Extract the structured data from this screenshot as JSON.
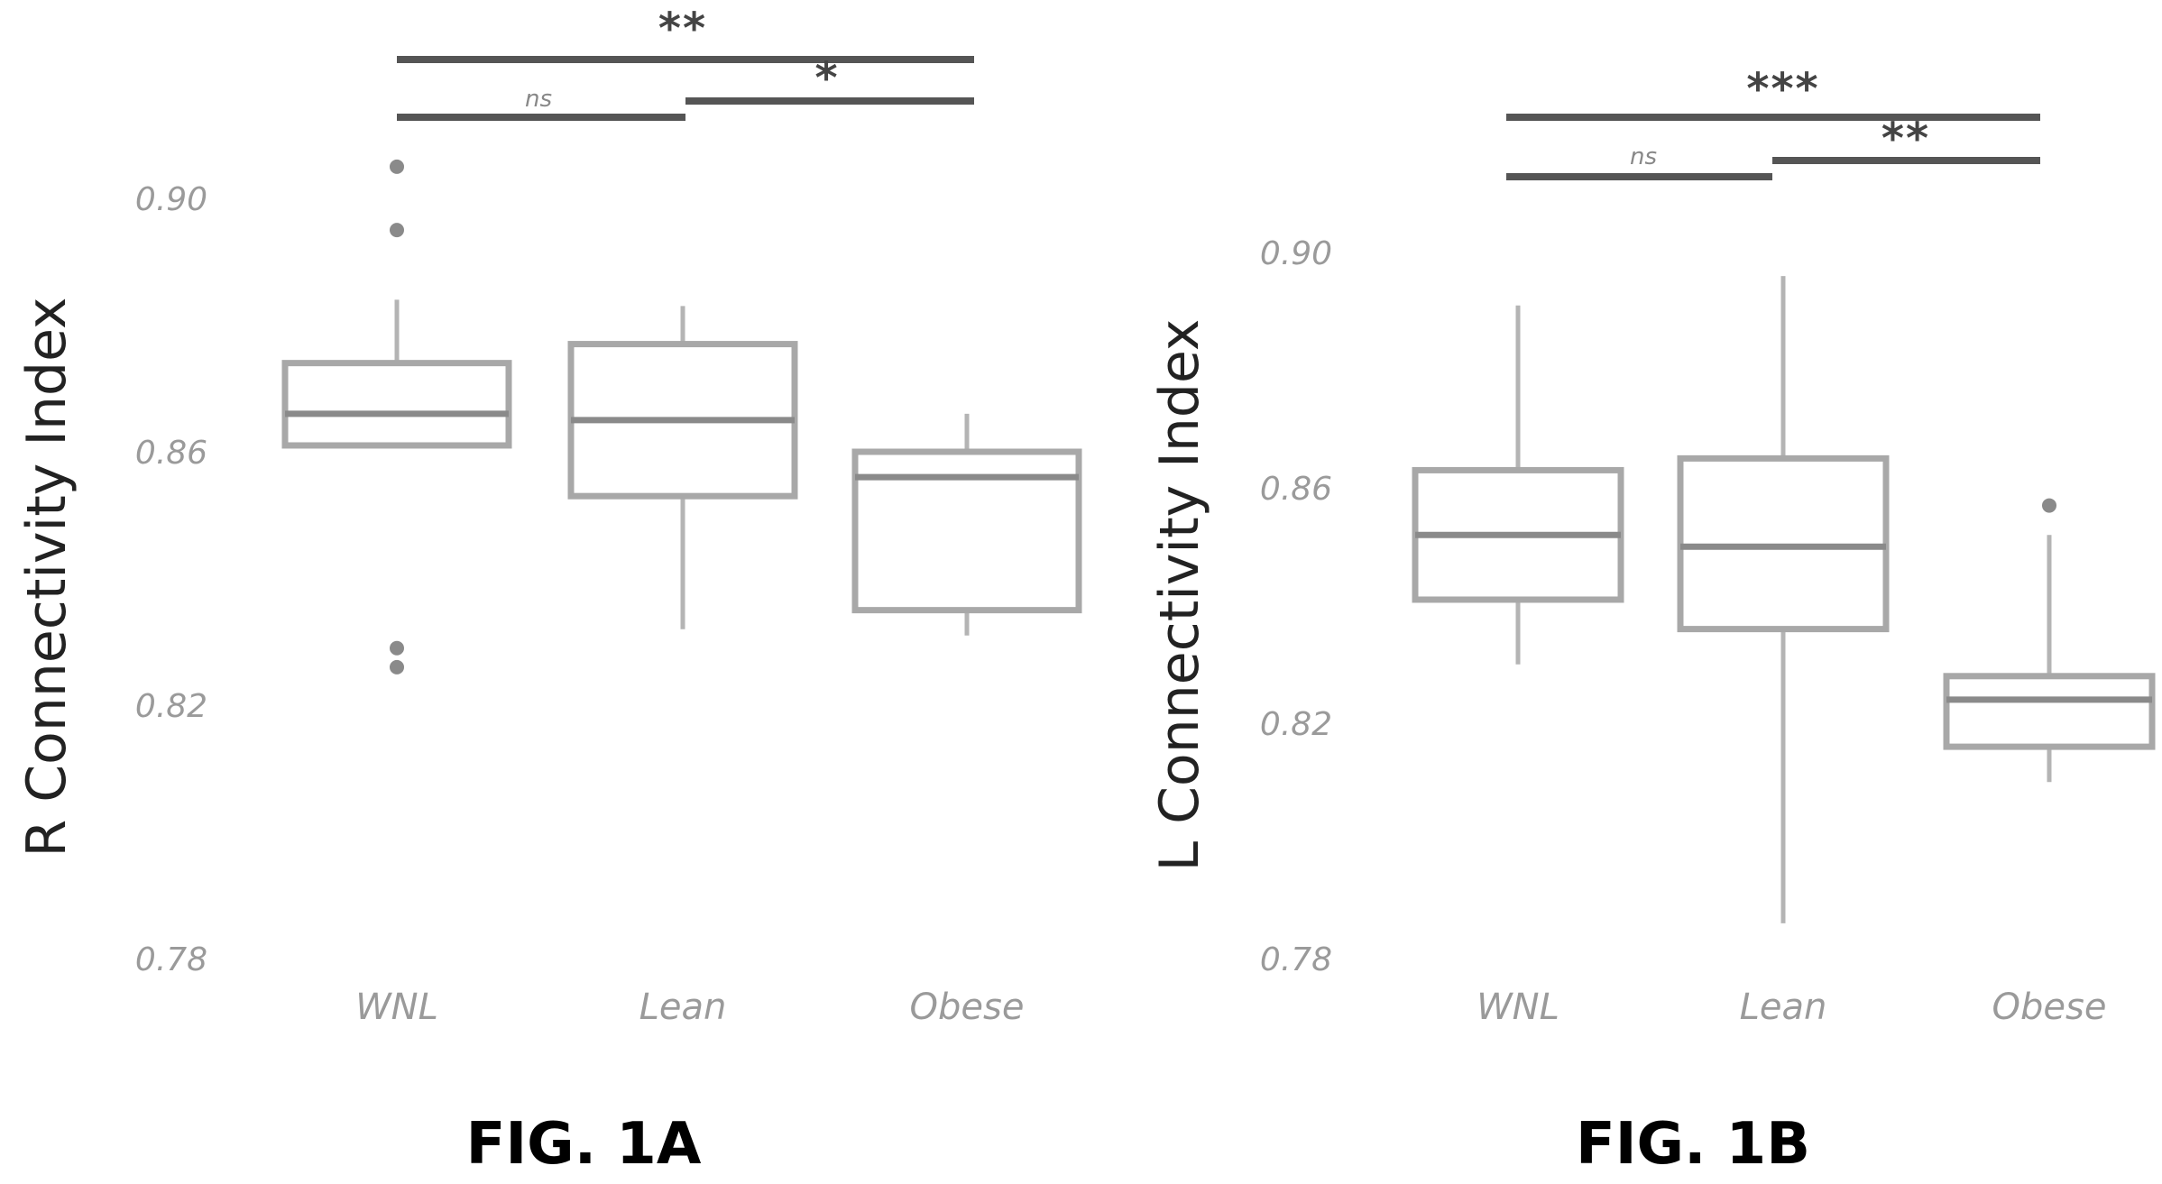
{
  "chart_data": [
    {
      "type": "box",
      "figure_label": "FIG. 1A",
      "ylabel": "R Connectivity Index",
      "yticks": [
        "0.78",
        "0.82",
        "0.86",
        "0.90"
      ],
      "ylim": [
        0.78,
        0.9
      ],
      "categories": [
        "WNL",
        "Lean",
        "Obese"
      ],
      "boxes": [
        {
          "category": "WNL",
          "whisker_low": 0.861,
          "q1": 0.861,
          "median": 0.866,
          "q3": 0.874,
          "whisker_high": 0.884,
          "outliers": [
            0.895,
            0.829,
            0.826,
            0.905
          ]
        },
        {
          "category": "Lean",
          "whisker_low": 0.832,
          "q1": 0.853,
          "median": 0.865,
          "q3": 0.877,
          "whisker_high": 0.883,
          "outliers": []
        },
        {
          "category": "Obese",
          "whisker_low": 0.831,
          "q1": 0.835,
          "median": 0.856,
          "q3": 0.86,
          "whisker_high": 0.866,
          "outliers": []
        }
      ],
      "significance": [
        {
          "from": "WNL",
          "to": "Obese",
          "label": "**"
        },
        {
          "from": "WNL",
          "to": "Lean",
          "label": "ns"
        },
        {
          "from": "Lean",
          "to": "Obese",
          "label": "*"
        }
      ]
    },
    {
      "type": "box",
      "figure_label": "FIG. 1B",
      "ylabel": "L Connectivity Index",
      "yticks": [
        "0.78",
        "0.82",
        "0.86",
        "0.90"
      ],
      "ylim": [
        0.78,
        0.9
      ],
      "categories": [
        "WNL",
        "Lean",
        "Obese"
      ],
      "boxes": [
        {
          "category": "WNL",
          "whisker_low": 0.83,
          "q1": 0.841,
          "median": 0.852,
          "q3": 0.863,
          "whisker_high": 0.891,
          "outliers": []
        },
        {
          "category": "Lean",
          "whisker_low": 0.786,
          "q1": 0.836,
          "median": 0.85,
          "q3": 0.865,
          "whisker_high": 0.896,
          "outliers": []
        },
        {
          "category": "Obese",
          "whisker_low": 0.81,
          "q1": 0.816,
          "median": 0.824,
          "q3": 0.828,
          "whisker_high": 0.852,
          "outliers": [
            0.857
          ]
        }
      ],
      "significance": [
        {
          "from": "WNL",
          "to": "Obese",
          "label": "***"
        },
        {
          "from": "WNL",
          "to": "Lean",
          "label": "ns"
        },
        {
          "from": "Lean",
          "to": "Obese",
          "label": "**"
        }
      ]
    }
  ]
}
